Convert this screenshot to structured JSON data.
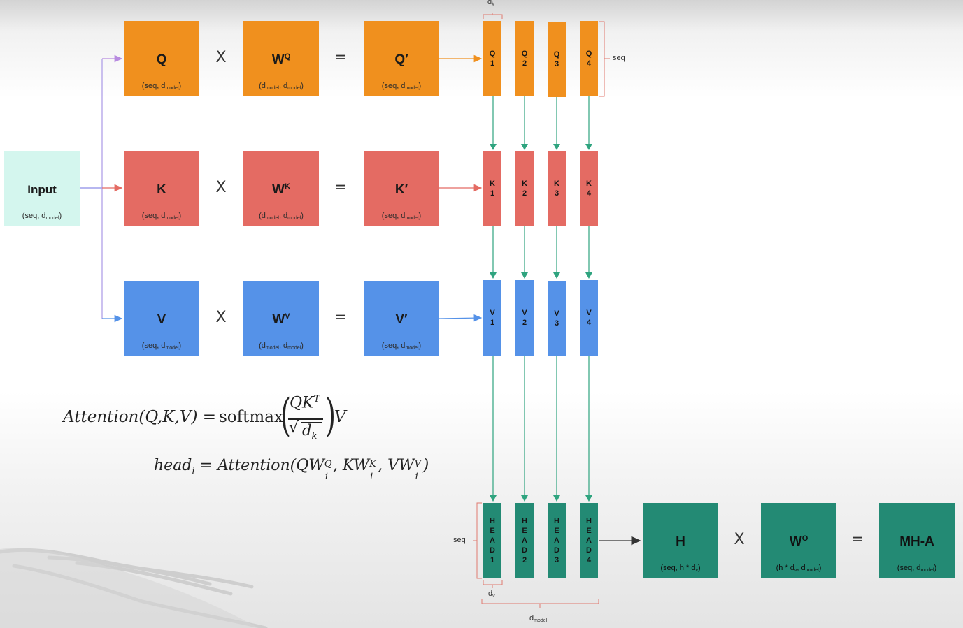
{
  "input": {
    "label": "Input",
    "dim_prefix": "(seq, d",
    "dim_sub": "model",
    "dim_suffix": ")"
  },
  "rows": [
    {
      "proj": "Q",
      "weight_base": "W",
      "weight_sup": "Q",
      "result": "Q′"
    },
    {
      "proj": "K",
      "weight_base": "W",
      "weight_sup": "K",
      "result": "K′"
    },
    {
      "proj": "V",
      "weight_base": "W",
      "weight_sup": "V",
      "result": "V′"
    }
  ],
  "dims": {
    "seq_prefix": "(seq, d",
    "model_sub": "model",
    "close": ")",
    "weight_prefix": "(d",
    "weight_mid": ", d",
    "h_dim": "(seq, h * d",
    "h_sub": "v",
    "wo_prefix": "(h * d",
    "wo_mid": ", d"
  },
  "ops": {
    "times": "X",
    "equals": "="
  },
  "q_heads": [
    [
      "Q",
      "1"
    ],
    [
      "Q",
      "2"
    ],
    [
      "Q",
      "3"
    ],
    [
      "Q",
      "4"
    ]
  ],
  "k_heads": [
    [
      "K",
      "1"
    ],
    [
      "K",
      "2"
    ],
    [
      "K",
      "3"
    ],
    [
      "K",
      "4"
    ]
  ],
  "v_heads": [
    [
      "V",
      "1"
    ],
    [
      "V",
      "2"
    ],
    [
      "V",
      "3"
    ],
    [
      "V",
      "4"
    ]
  ],
  "head_outputs": [
    [
      "H",
      "E",
      "A",
      "D",
      "1"
    ],
    [
      "H",
      "E",
      "A",
      "D",
      "2"
    ],
    [
      "H",
      "E",
      "A",
      "D",
      "3"
    ],
    [
      "H",
      "E",
      "A",
      "D",
      "4"
    ]
  ],
  "labels": {
    "dk_base": "d",
    "dk_sub": "k",
    "dv_base": "d",
    "dv_sub": "v",
    "dmodel_base": "d",
    "dmodel_sub": "model",
    "seq": "seq"
  },
  "output": {
    "h_label": "H",
    "wo_base": "W",
    "wo_sup": "O",
    "mha_label": "MH-A"
  },
  "formulas": {
    "attention_lhs": "Attention(Q,K,V) =",
    "softmax": "softmax",
    "numerator": "QK",
    "numerator_sup": "T",
    "denominator": "d",
    "denominator_sub": "k",
    "rhs_v": "V",
    "head_lhs": "head",
    "head_sub": "i",
    "head_rhs": "= Attention(QW",
    "head_q_sup": "Q",
    "head_kw": ", KW",
    "head_k_sup": "K",
    "head_vw": ", VW",
    "head_v_sup": "V",
    "head_i": "i",
    "head_close": ")"
  },
  "colors": {
    "query": "#f0901e",
    "key": "#e46b63",
    "value": "#5592e8",
    "head": "#238a74",
    "input": "#d4f6ee",
    "arrow_green": "#2fa47f"
  }
}
